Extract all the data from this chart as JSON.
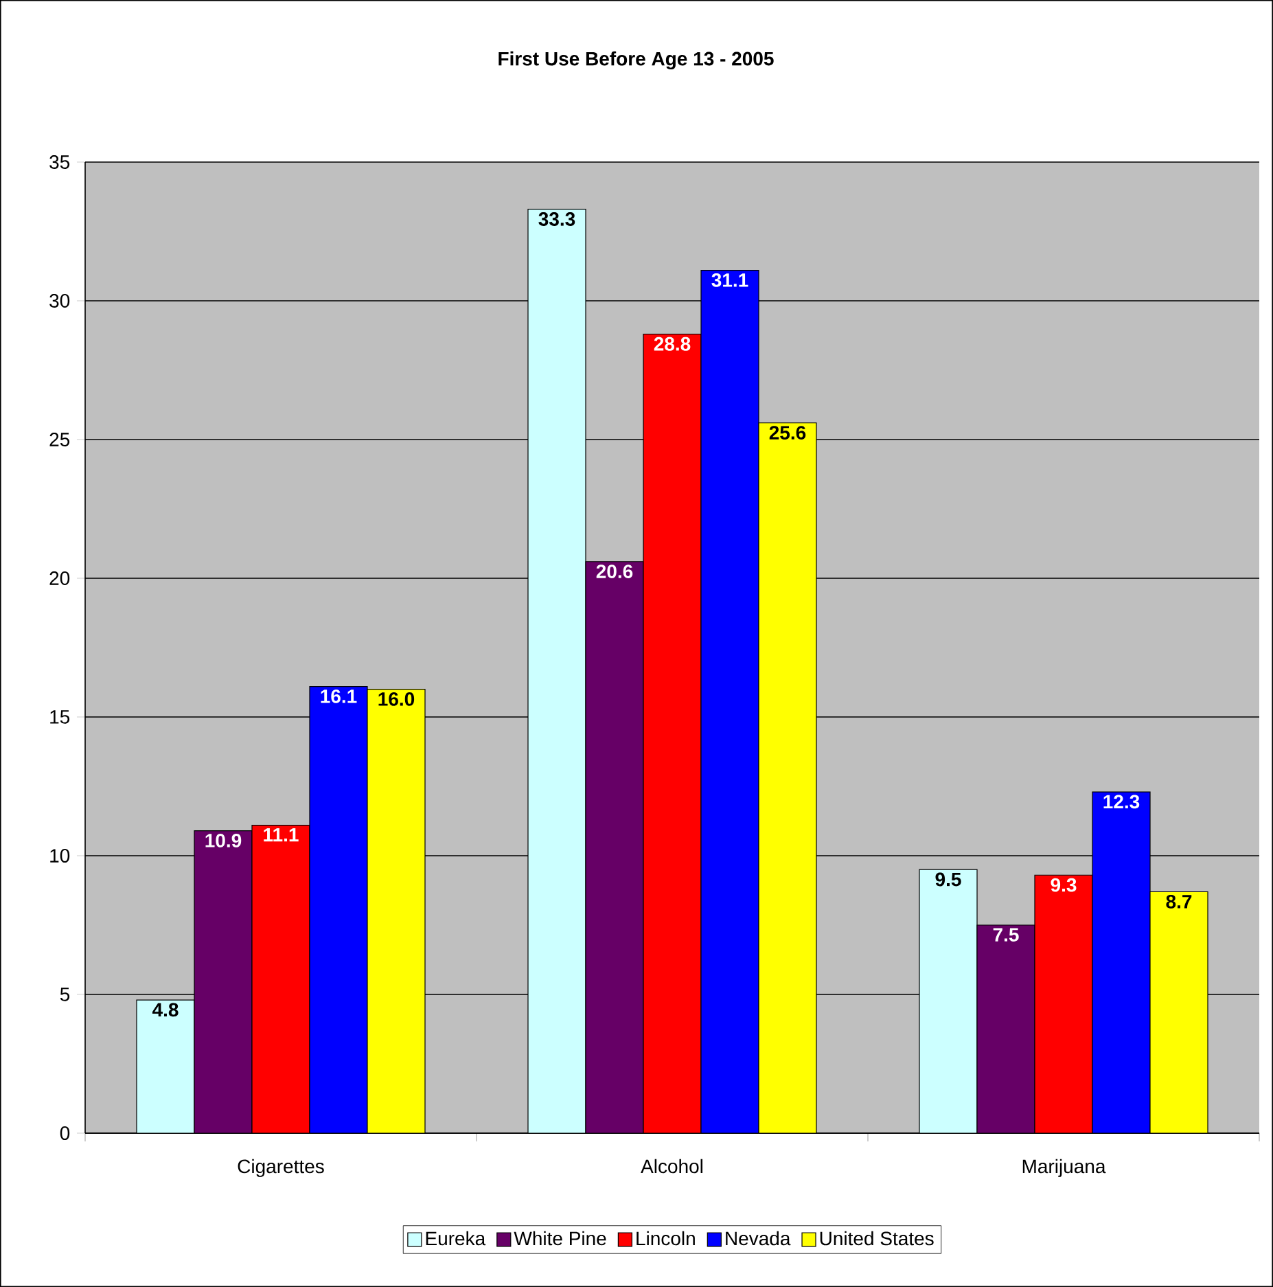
{
  "chart_data": {
    "type": "bar",
    "title": "First Use Before Age 13 - 2005",
    "categories": [
      "Cigarettes",
      "Alcohol",
      "Marijuana"
    ],
    "series": [
      {
        "name": "Eureka",
        "color": "#ccffff",
        "values": [
          4.8,
          33.3,
          9.5
        ],
        "value_labels": [
          "4.8",
          "33.3",
          "9.5"
        ]
      },
      {
        "name": "White Pine",
        "color": "#660066",
        "values": [
          10.9,
          20.6,
          7.5
        ],
        "value_labels": [
          "10.9",
          "20.6",
          "7.5"
        ]
      },
      {
        "name": "Lincoln",
        "color": "#ff0000",
        "values": [
          11.1,
          28.8,
          9.3
        ],
        "value_labels": [
          "11.1",
          "28.8",
          "9.3"
        ]
      },
      {
        "name": "Nevada",
        "color": "#0000ff",
        "values": [
          16.1,
          31.1,
          12.3
        ],
        "value_labels": [
          "16.1",
          "31.1",
          "12.3"
        ]
      },
      {
        "name": "United States",
        "color": "#ffff00",
        "values": [
          16.0,
          25.6,
          8.7
        ],
        "value_labels": [
          "16.0",
          "25.6",
          "8.7"
        ]
      }
    ],
    "ylim": [
      0,
      35
    ],
    "yticks": [
      0,
      5,
      10,
      15,
      20,
      25,
      30,
      35
    ],
    "grid": "y",
    "legend": "bottom"
  }
}
